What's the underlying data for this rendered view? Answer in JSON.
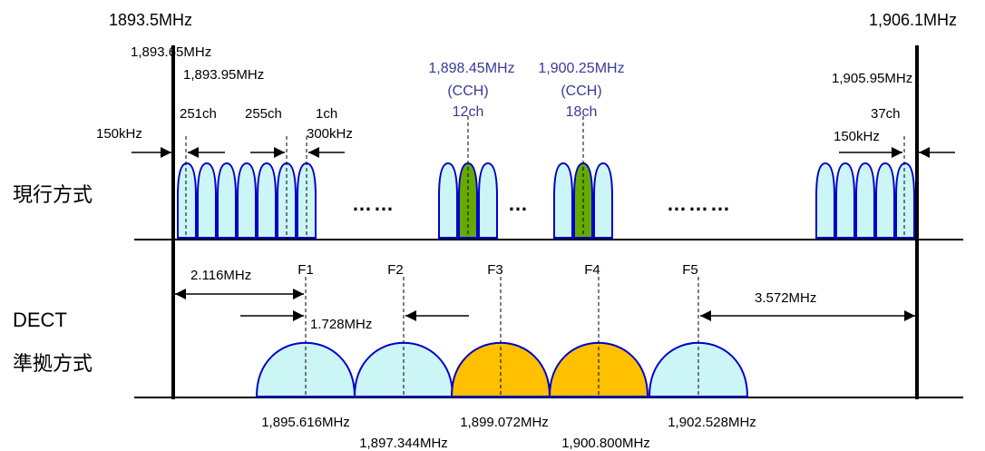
{
  "band": {
    "left_edge": "1893.5MHz",
    "right_edge": "1,906.1MHz"
  },
  "current": {
    "row_label": "現行方式",
    "labels": {
      "f_1893_65": "1,893.65MHz",
      "f_1893_95": "1,893.95MHz",
      "f_1905_95": "1,905.95MHz",
      "guard_left": "150kHz",
      "guard_right": "150kHz",
      "ch251": "251ch",
      "ch255": "255ch",
      "ch1": "1ch",
      "spacing": "300kHz",
      "ch37": "37ch",
      "cch1_freq": "1,898.45MHz",
      "cch1_tag": "(CCH)",
      "cch1_ch": "12ch",
      "cch2_freq": "1,900.25MHz",
      "cch2_tag": "(CCH)",
      "cch2_ch": "18ch",
      "ellipsis1": "……",
      "ellipsis2": "…",
      "ellipsis3": "………"
    }
  },
  "dect": {
    "row_label_1": "DECT",
    "row_label_2": "準拠方式",
    "carriers": [
      "F1",
      "F2",
      "F3",
      "F4",
      "F5"
    ],
    "carrier_freqs": [
      "1,895.616MHz",
      "1,897.344MHz",
      "1,899.072MHz",
      "1,900.800MHz",
      "1,902.528MHz"
    ],
    "left_offset": "2.116MHz",
    "spacing": "1.728MHz",
    "right_offset": "3.572MHz"
  },
  "colors": {
    "carrier_fill": "#ccf5f5",
    "carrier_stroke": "#0000cc",
    "cch_fill": "#66aa00",
    "dect_active": "#ffc000"
  }
}
